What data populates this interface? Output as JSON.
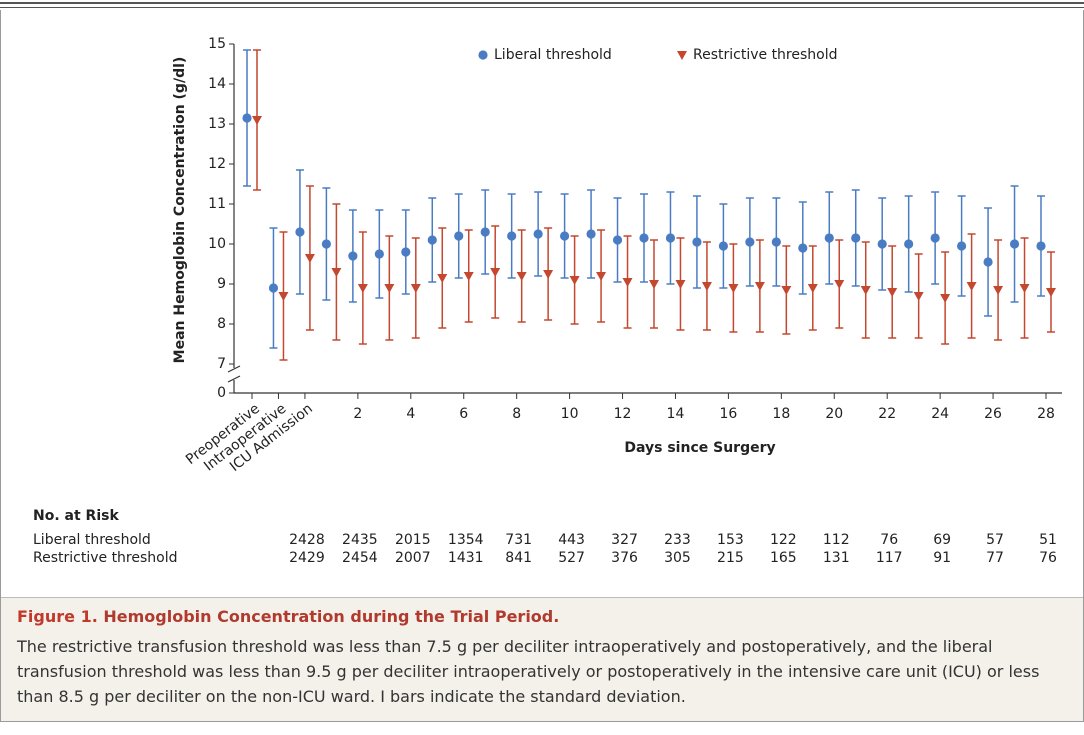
{
  "chart_data": {
    "type": "errorbar",
    "y_label": "Mean Hemoglobin Concentration (g/dl)",
    "x_label": "Days since Surgery",
    "categories": [
      "Preoperative",
      "Intraoperative",
      "ICU Admission",
      null,
      "2",
      null,
      "4",
      null,
      "6",
      null,
      "8",
      null,
      "10",
      null,
      "12",
      null,
      "14",
      null,
      "16",
      null,
      "18",
      null,
      "20",
      null,
      "22",
      null,
      "24",
      null,
      "26",
      null,
      "28"
    ],
    "series": [
      {
        "name": "Liberal threshold",
        "color": "#4a7cc4",
        "marker": "circle",
        "values": [
          13.15,
          8.9,
          10.3,
          10.0,
          9.7,
          9.75,
          9.8,
          10.1,
          10.2,
          10.3,
          10.2,
          10.25,
          10.2,
          10.25,
          10.1,
          10.15,
          10.15,
          10.05,
          9.95,
          10.05,
          10.05,
          9.9,
          10.15,
          10.15,
          10.0,
          10.0,
          10.15,
          9.95,
          9.55,
          10.0,
          9.95
        ],
        "errors": [
          1.7,
          1.5,
          1.55,
          1.4,
          1.15,
          1.1,
          1.05,
          1.05,
          1.05,
          1.05,
          1.05,
          1.05,
          1.05,
          1.1,
          1.05,
          1.1,
          1.15,
          1.15,
          1.05,
          1.1,
          1.1,
          1.15,
          1.15,
          1.2,
          1.15,
          1.2,
          1.15,
          1.25,
          1.35,
          1.45,
          1.25
        ]
      },
      {
        "name": "Restrictive threshold",
        "color": "#c4472f",
        "marker": "triangle",
        "values": [
          13.1,
          8.7,
          9.65,
          9.3,
          8.9,
          8.9,
          8.9,
          9.15,
          9.2,
          9.3,
          9.2,
          9.25,
          9.1,
          9.2,
          9.05,
          9.0,
          9.0,
          8.95,
          8.9,
          8.95,
          8.85,
          8.9,
          9.0,
          8.85,
          8.8,
          8.7,
          8.65,
          8.95,
          8.85,
          8.9,
          8.8
        ],
        "errors": [
          1.75,
          1.6,
          1.8,
          1.7,
          1.4,
          1.3,
          1.25,
          1.25,
          1.15,
          1.15,
          1.15,
          1.15,
          1.1,
          1.15,
          1.15,
          1.1,
          1.15,
          1.1,
          1.1,
          1.15,
          1.1,
          1.05,
          1.1,
          1.2,
          1.15,
          1.05,
          1.15,
          1.3,
          1.25,
          1.25,
          1.0
        ]
      }
    ],
    "ylim": [
      7,
      15
    ],
    "yticks": [
      0,
      7,
      8,
      9,
      10,
      11,
      12,
      13,
      14,
      15
    ],
    "axis_break": true,
    "legend": "top"
  },
  "risk_table": {
    "title": "No. at Risk",
    "rows": [
      {
        "label": "Liberal threshold",
        "values": [
          "2428",
          "2435",
          "2015",
          "1354",
          "731",
          "443",
          "327",
          "233",
          "153",
          "122",
          "112",
          "76",
          "69",
          "57",
          "51"
        ]
      },
      {
        "label": "Restrictive threshold",
        "values": [
          "2429",
          "2454",
          "2007",
          "1431",
          "841",
          "527",
          "376",
          "305",
          "215",
          "165",
          "131",
          "117",
          "91",
          "77",
          "76"
        ]
      }
    ]
  },
  "caption": {
    "label": "Figure 1.",
    "title": "Hemoglobin Concentration during the Trial Period.",
    "text": "The restrictive transfusion threshold was less than 7.5 g per deciliter intraoperatively and postoperatively, and the liberal transfusion threshold was less than 9.5 g per deciliter intraoperatively or postoperatively in the intensive care unit (ICU) or less than 8.5 g per deciliter on the non-ICU ward. I bars indicate the standard deviation."
  }
}
